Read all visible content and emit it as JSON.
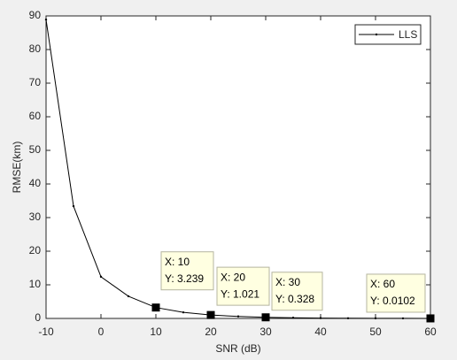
{
  "chart_data": {
    "type": "line",
    "xlabel": "SNR (dB)",
    "ylabel": "RMSE(km)",
    "x": [
      -10,
      -5,
      0,
      5,
      10,
      15,
      20,
      25,
      30,
      35,
      40,
      45,
      50,
      55,
      60
    ],
    "series": [
      {
        "name": "LLS",
        "color": "#000000",
        "values": [
          88.9,
          33.4,
          12.4,
          6.6,
          3.239,
          1.8,
          1.021,
          0.6,
          0.328,
          0.2,
          0.1,
          0.05,
          0.03,
          0.02,
          0.0102
        ]
      }
    ],
    "xlim": [
      -10,
      60
    ],
    "xticks": [
      -10,
      0,
      10,
      20,
      30,
      40,
      50,
      60
    ],
    "ylim": [
      0,
      90
    ],
    "yticks": [
      0,
      10,
      20,
      30,
      40,
      50,
      60,
      70,
      80,
      90
    ],
    "legend": "upper right",
    "datatips": [
      {
        "x": 10,
        "y": 3.239,
        "text": [
          "X: 10",
          "Y: 3.239"
        ]
      },
      {
        "x": 20,
        "y": 1.021,
        "text": [
          "X: 20",
          "Y: 1.021"
        ]
      },
      {
        "x": 30,
        "y": 0.328,
        "text": [
          "X: 30",
          "Y: 0.328"
        ]
      },
      {
        "x": 60,
        "y": 0.0102,
        "text": [
          "X: 60",
          "Y: 0.0102"
        ]
      }
    ]
  }
}
